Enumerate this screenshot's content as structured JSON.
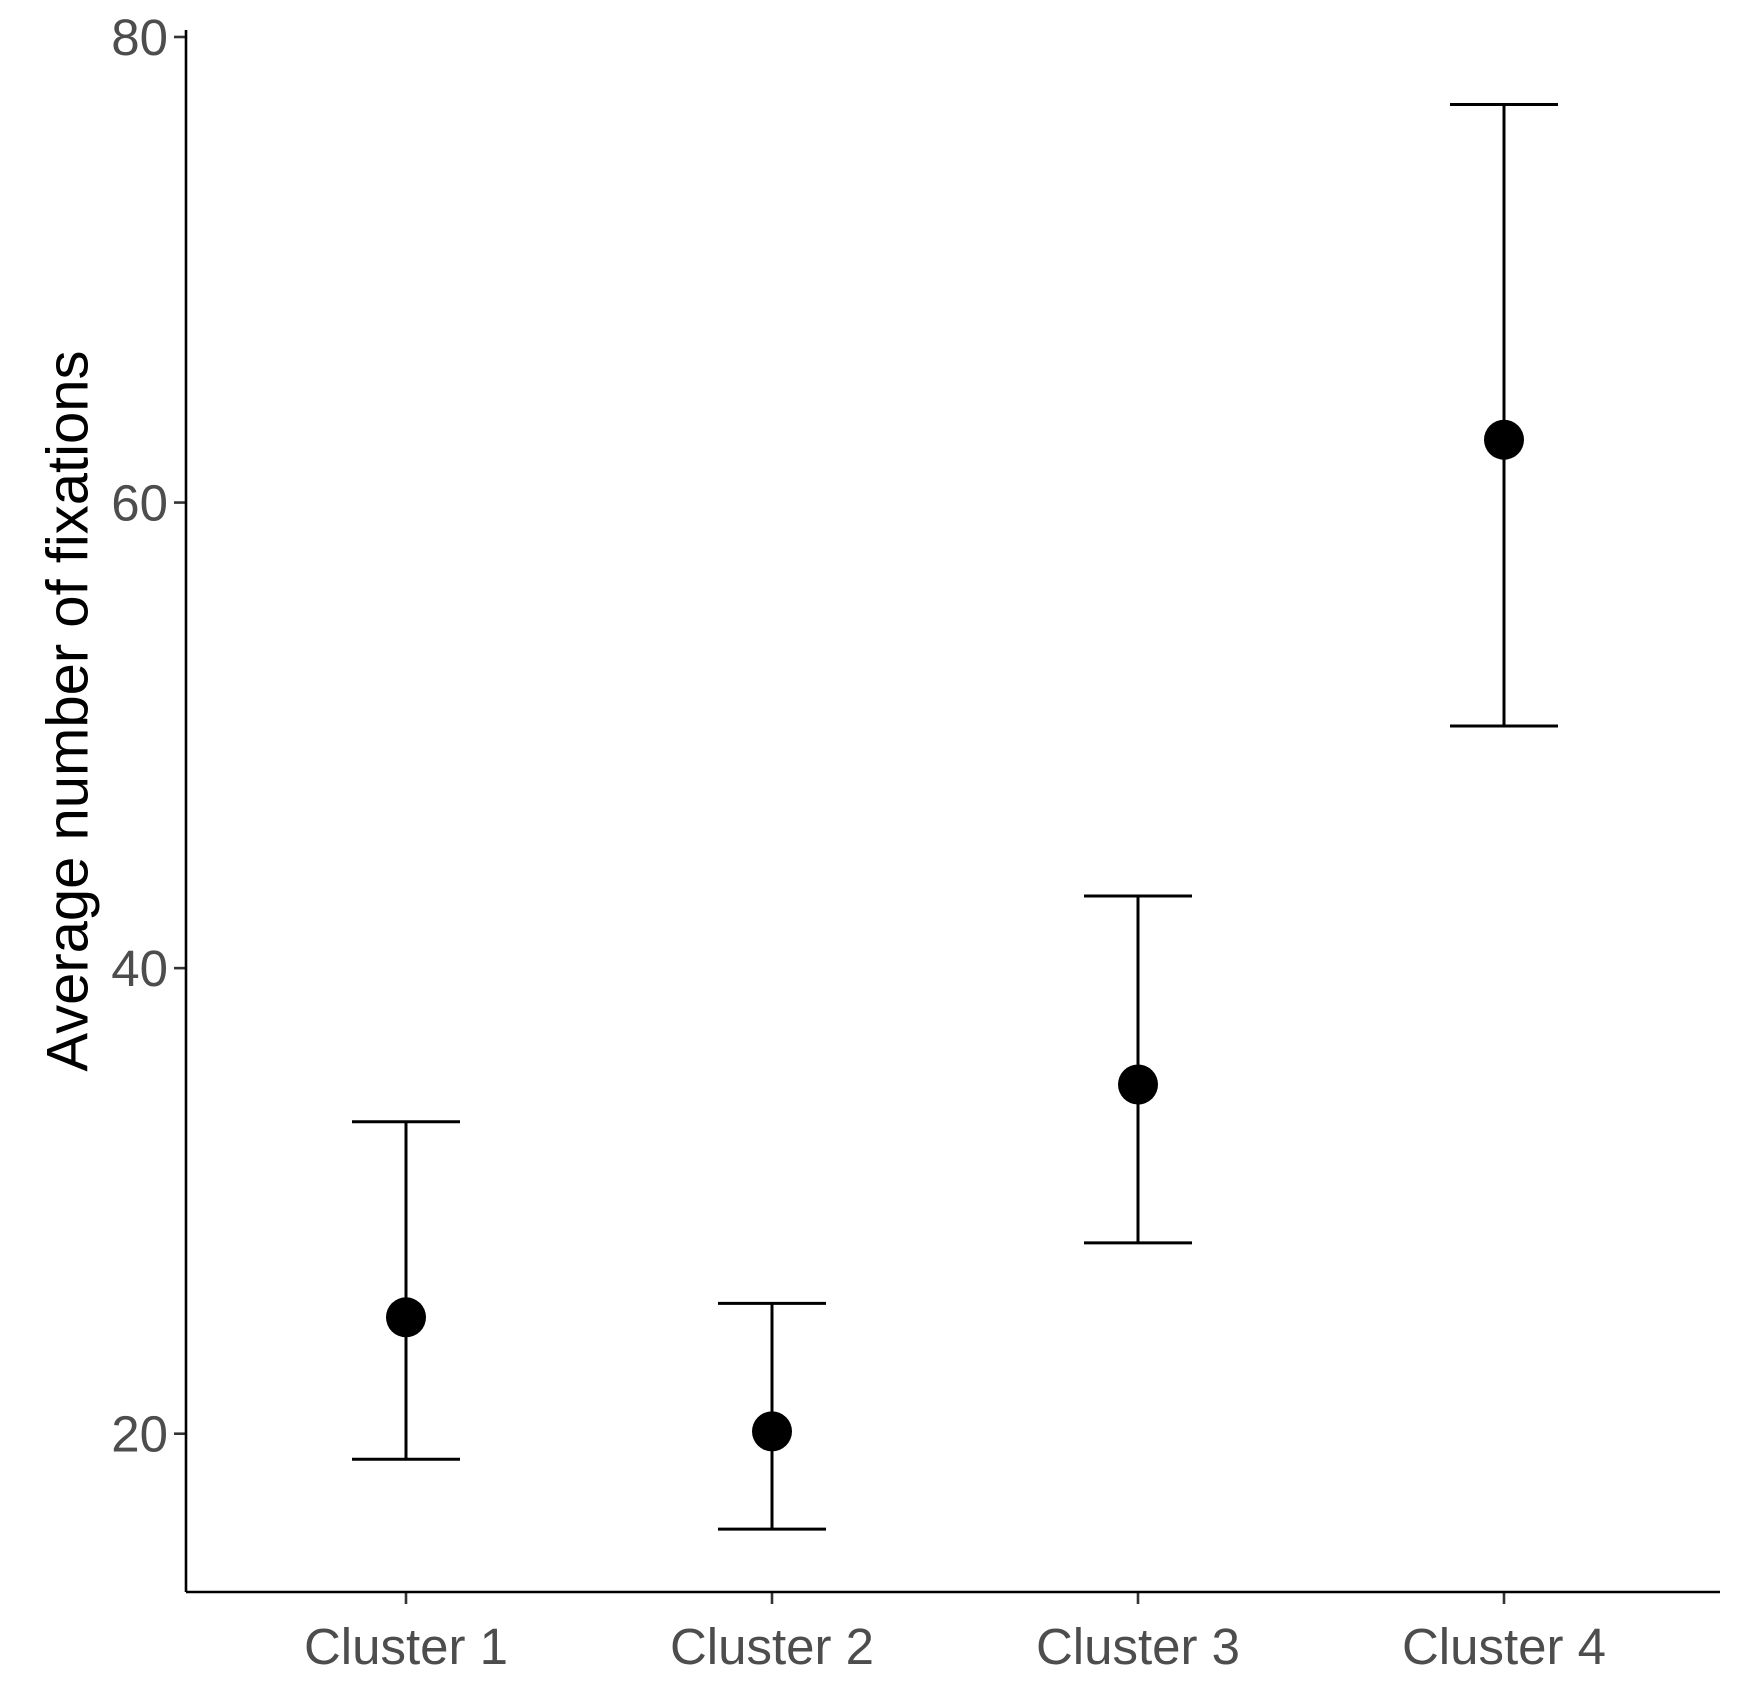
{
  "chart_data": {
    "type": "scatter",
    "title": "",
    "xlabel": "",
    "ylabel": "Average number of fixations",
    "categories": [
      "Cluster 1",
      "Cluster 2",
      "Cluster 3",
      "Cluster 4"
    ],
    "series": [
      {
        "values": [
          25.0,
          20.1,
          35.0,
          62.7
        ],
        "lower": [
          18.9,
          15.9,
          28.2,
          50.4
        ],
        "upper": [
          33.4,
          25.6,
          43.1,
          77.1
        ]
      }
    ],
    "ylim": [
      13.2,
      80.3
    ],
    "yticks": [
      20,
      40,
      60,
      80
    ],
    "ytick_labels": [
      "20",
      "40",
      "60",
      "80"
    ],
    "grid": false,
    "legend": "none",
    "colors": {
      "marks": "#000000",
      "axis": "#000000",
      "tick_text": "#4d4d4d"
    }
  }
}
